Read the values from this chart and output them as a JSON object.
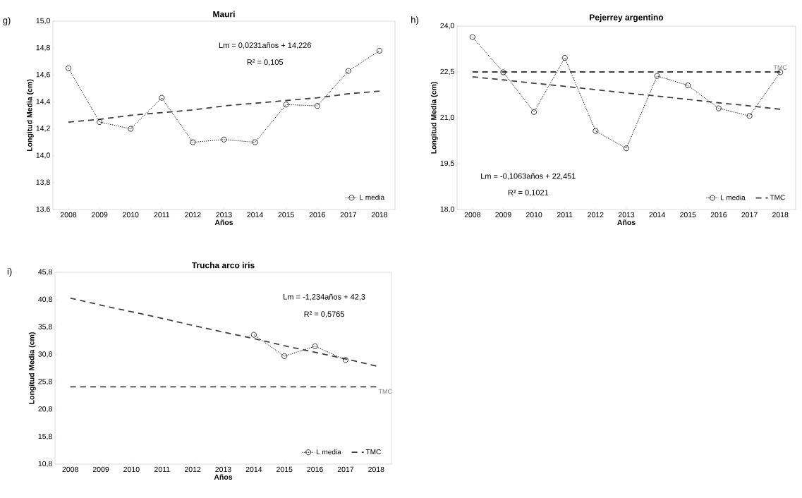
{
  "chart_data": [
    {
      "type": "line",
      "title": "Mauri",
      "xlabel": "Años",
      "ylabel": "Longitud Media (cm)",
      "categories": [
        "2008",
        "2009",
        "2010",
        "2011",
        "2012",
        "2013",
        "2014",
        "2015",
        "2016",
        "2017",
        "2018"
      ],
      "series": [
        {
          "name": "L media",
          "color": "#000000",
          "marker": "circle",
          "line_style": "dotted",
          "values": [
            14.65,
            14.25,
            14.2,
            14.43,
            14.1,
            14.12,
            14.1,
            14.38,
            14.37,
            14.63,
            14.78
          ]
        },
        {
          "color": "#404040",
          "marker": "none",
          "line_style": "dashed",
          "values": [
            14.25,
            14.27,
            14.3,
            14.32,
            14.34,
            14.37,
            14.39,
            14.41,
            14.43,
            14.46,
            14.48
          ]
        }
      ],
      "ylim": [
        13.6,
        15.0
      ],
      "yticks": [
        {
          "value": 13.6,
          "label": "13,6"
        },
        {
          "value": 13.8,
          "label": "13,8"
        },
        {
          "value": 14.0,
          "label": "14,0"
        },
        {
          "value": 14.2,
          "label": "14,2"
        },
        {
          "value": 14.4,
          "label": "14,4"
        },
        {
          "value": 14.6,
          "label": "14,6"
        },
        {
          "value": 14.8,
          "label": "14,8"
        },
        {
          "value": 15.0,
          "label": "15,0"
        }
      ],
      "annotations": [
        "g)",
        "Lm = 0,0231años + 14,226",
        "R² = 0,105"
      ],
      "legend": "bottom right",
      "grid": false
    },
    {
      "type": "line",
      "title": "Pejerrey argentino",
      "xlabel": "Años",
      "ylabel": "Longitud Media (cm)",
      "categories": [
        "2008",
        "2009",
        "2010",
        "2011",
        "2012",
        "2013",
        "2014",
        "2015",
        "2016",
        "2017",
        "2018"
      ],
      "series": [
        {
          "name": "L media",
          "color": "#000000",
          "marker": "circle",
          "line_style": "dotted",
          "values": [
            23.64,
            22.49,
            21.19,
            22.96,
            20.57,
            20.0,
            22.37,
            22.06,
            21.31,
            21.06,
            22.49
          ]
        },
        {
          "name": "TMC",
          "color": "#404040",
          "marker": "none",
          "line_style": "dashed",
          "values": [
            22.5,
            22.5,
            22.5,
            22.5,
            22.5,
            22.5,
            22.5,
            22.5,
            22.5,
            22.5,
            22.5
          ]
        },
        {
          "color": "#404040",
          "marker": "none",
          "line_style": "dashed",
          "values": [
            22.34,
            22.24,
            22.13,
            22.03,
            21.92,
            21.81,
            21.71,
            21.6,
            21.49,
            21.39,
            21.28
          ]
        }
      ],
      "ylim": [
        18.0,
        24.0
      ],
      "yticks": [
        {
          "value": 18.0,
          "label": "18,0"
        },
        {
          "value": 19.5,
          "label": "19,5"
        },
        {
          "value": 21.0,
          "label": "21,0"
        },
        {
          "value": 22.5,
          "label": "22,5"
        },
        {
          "value": 24.0,
          "label": "24,0"
        }
      ],
      "annotations": [
        "h)",
        "Lm = -0,1063años + 22,451",
        "R² = 0,1021",
        {
          "text": "TMC",
          "x": "2018",
          "y": 22.5
        }
      ],
      "legend": "bottom right",
      "grid": false
    },
    {
      "type": "line",
      "title": "Trucha arco iris",
      "xlabel": "Años",
      "ylabel": "Longitud Media (cm)",
      "categories": [
        "2008",
        "2009",
        "2010",
        "2011",
        "2012",
        "2013",
        "2014",
        "2015",
        "2016",
        "2017",
        "2018"
      ],
      "series": [
        {
          "name": "L media",
          "color": "#000000",
          "marker": "circle",
          "line_style": "dotted",
          "values": [
            null,
            null,
            null,
            null,
            null,
            null,
            34.4,
            30.5,
            32.3,
            29.8,
            null
          ]
        },
        {
          "name": "TMC",
          "color": "#404040",
          "marker": "none",
          "line_style": "dashed",
          "values": [
            24.9,
            24.9,
            24.9,
            24.9,
            24.9,
            24.9,
            24.9,
            24.9,
            24.9,
            24.9,
            24.9
          ]
        },
        {
          "color": "#404040",
          "marker": "none",
          "line_style": "dashed",
          "values": [
            41.1,
            39.8,
            38.6,
            37.4,
            36.1,
            34.9,
            33.7,
            32.4,
            31.2,
            30.0,
            28.7
          ]
        }
      ],
      "ylim": [
        10.8,
        45.8
      ],
      "yticks": [
        {
          "value": 10.8,
          "label": "10,8"
        },
        {
          "value": 15.8,
          "label": "15,8"
        },
        {
          "value": 20.8,
          "label": "20,8"
        },
        {
          "value": 25.8,
          "label": "25,8"
        },
        {
          "value": 30.8,
          "label": "30,8"
        },
        {
          "value": 35.8,
          "label": "35,8"
        },
        {
          "value": 40.8,
          "label": "40,8"
        },
        {
          "value": 45.8,
          "label": "45,8"
        }
      ],
      "annotations": [
        "i)",
        "Lm = -1,234años + 42,3",
        "R² = 0,5765",
        {
          "text": "TMC",
          "x": "2018",
          "y": 24.9
        }
      ],
      "legend": "bottom right",
      "grid": false
    }
  ]
}
